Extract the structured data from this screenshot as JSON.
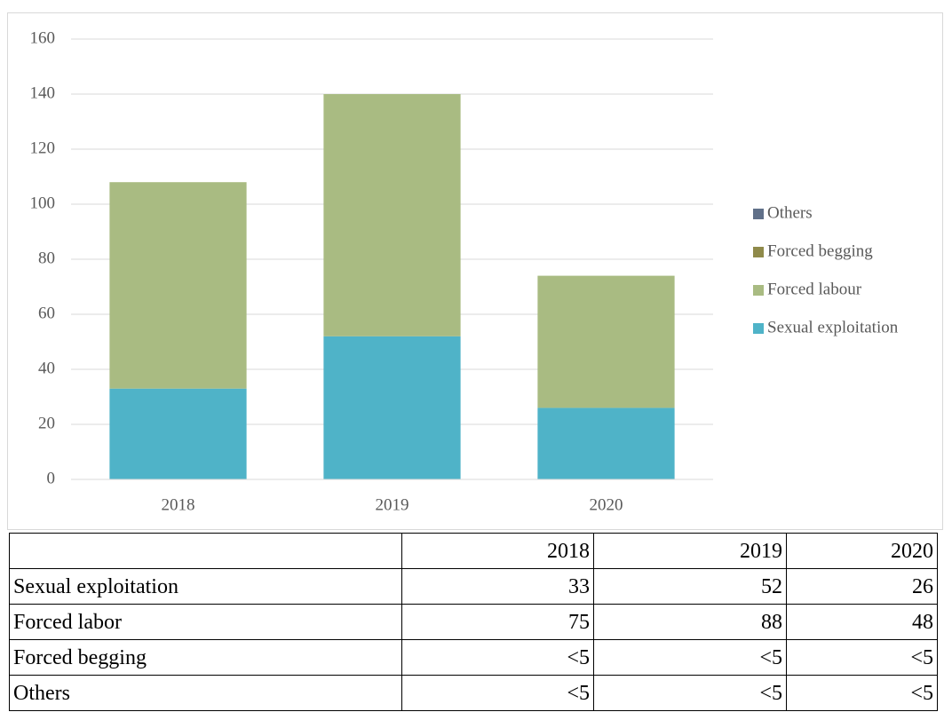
{
  "chart_data": {
    "type": "bar",
    "stacked": true,
    "categories": [
      "2018",
      "2019",
      "2020"
    ],
    "series": [
      {
        "name": "Sexual exploitation",
        "color": "#4fb3c8",
        "values": [
          33,
          52,
          26
        ]
      },
      {
        "name": "Forced labour",
        "color": "#a9bb82",
        "values": [
          75,
          88,
          48
        ]
      },
      {
        "name": "Forced begging",
        "color": "#8f8a4a",
        "values": [
          0,
          0,
          0
        ]
      },
      {
        "name": "Others",
        "color": "#607089",
        "values": [
          0,
          0,
          0
        ]
      }
    ],
    "ylim": [
      0,
      160
    ],
    "yticks": [
      0,
      20,
      40,
      60,
      80,
      100,
      120,
      140,
      160
    ],
    "grid": true,
    "legend": "right"
  },
  "table": {
    "header": [
      "2018",
      "2019",
      "2020"
    ],
    "rows": [
      {
        "label": "Sexual exploitation",
        "cells": [
          33,
          52,
          26
        ]
      },
      {
        "label": "Forced labor",
        "cells": [
          75,
          88,
          48
        ]
      },
      {
        "label": "Forced begging",
        "cells": [
          "<5",
          "<5",
          "<5"
        ]
      },
      {
        "label": "Others",
        "cells": [
          "<5",
          "<5",
          "<5"
        ]
      }
    ]
  }
}
